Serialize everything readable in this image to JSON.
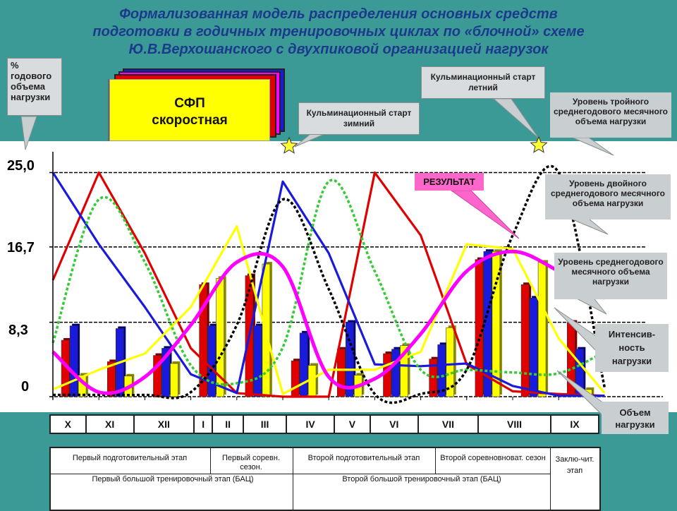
{
  "title": {
    "line1": "Формализованная модель распределения основных средств",
    "line2": "подготовки в годичных тренировочных циклах по «блочной» схеме",
    "line3": "Ю.В.Верхошанского с двухпиковой организацией нагрузок"
  },
  "y_axis_title": "% годового объема нагрузки",
  "y_ticks": [
    "25,0",
    "16,7",
    "8,3",
    "0"
  ],
  "sfp_box": {
    "line1": "СФП",
    "line2": "скоростная"
  },
  "callouts": {
    "winter_start": "Кульминационный старт зимний",
    "summer_start": "Кульминационный старт летний",
    "triple_level": "Уровень тройного среднегодового месячного объема нагрузки",
    "double_level": "Уровень двойного среднегодового месячного объема нагрузки",
    "avg_level": "Уровень среднегодового месячного объема нагрузки",
    "intensity": "Интенсив-ность нагрузки",
    "volume": "Объем нагрузки",
    "result": "РЕЗУЛЬТАТ"
  },
  "months": [
    "X",
    "XI",
    "XII",
    "I",
    "II",
    "III",
    "IV",
    "V",
    "VI",
    "VII",
    "VIII",
    "IX"
  ],
  "stages": {
    "prep1": "Первый подготовительный этап",
    "comp1": "Первый соревн. сезон.",
    "prep2": "Второй подготовительный этап",
    "comp2": "Второй соревновноват. сезон",
    "final": "Заклю-чит. этап",
    "bac1": "Первый большой тренировочный этап (БАЦ)",
    "bac2": "Второй большой тренировочный этап (БАЦ)"
  },
  "colors": {
    "background": "#3c9a96",
    "red": "#e00000",
    "blue": "#1a1adc",
    "yellow": "#ffff00",
    "green": "#33cc33",
    "magenta": "#ff00ff",
    "black": "#000000"
  },
  "chart_data": {
    "type": "bar",
    "categories": [
      "X",
      "XI",
      "XII",
      "I",
      "II",
      "III",
      "IV",
      "V",
      "VI",
      "VII",
      "VIII",
      "IX"
    ],
    "ylim": [
      0,
      27
    ],
    "y_ticks": [
      0,
      8.3,
      16.7,
      25.0
    ],
    "series": [
      {
        "color": "red",
        "values": [
          6.3,
          3.9,
          4.6,
          12.5,
          13.5,
          4.0,
          5.3,
          4.8,
          4.2,
          15.3,
          12.5,
          8.3
        ]
      },
      {
        "color": "blue",
        "values": [
          7.9,
          7.6,
          5.4,
          7.9,
          7.9,
          7.1,
          8.3,
          5.3,
          5.8,
          16.2,
          11.0,
          5.3
        ]
      },
      {
        "color": "yellow",
        "values": [
          2.4,
          2.3,
          3.7,
          13.2,
          14.8,
          3.5,
          2.4,
          5.7,
          7.7,
          16.2,
          15.0,
          0.8
        ]
      }
    ],
    "lines": [
      {
        "color": "red",
        "style": "solid",
        "x": [
          -0.5,
          0.5,
          1.5,
          2.5,
          3.5,
          4.5,
          5.5,
          6.5,
          7.5,
          8.5,
          9.5,
          10.5,
          11.5
        ],
        "y": [
          13.0,
          25.0,
          16.0,
          5.4,
          0.4,
          0.0,
          0.0,
          25.0,
          18.0,
          3.6,
          0.6,
          0.3,
          0.1
        ]
      },
      {
        "color": "blue",
        "style": "solid",
        "x": [
          -0.5,
          0.5,
          1.5,
          2.5,
          3.5,
          4.5,
          5.5,
          6.5,
          7.5,
          8.5,
          9.5,
          10.5,
          11.5
        ],
        "y": [
          25.0,
          17.0,
          10.0,
          2.5,
          0.4,
          24.0,
          16.0,
          3.6,
          3.4,
          3.7,
          1.2,
          0.1,
          0.1
        ]
      },
      {
        "color": "yellow",
        "style": "solid",
        "x": [
          -0.5,
          0.5,
          1.5,
          2.5,
          3.5,
          4.5,
          5.5,
          6.5,
          7.5,
          8.5,
          9.5,
          10.5,
          11.5
        ],
        "y": [
          0.8,
          3.0,
          4.8,
          10.0,
          19.0,
          0.3,
          3.0,
          3.0,
          5.0,
          17.0,
          16.5,
          6.5,
          0.4
        ]
      },
      {
        "color": "green",
        "style": "dotted",
        "x": [
          -0.5,
          0.5,
          1.5,
          2.5,
          3.5,
          4.5,
          5.5,
          6.5,
          7.5,
          8.5,
          9.5,
          10.5,
          11.5
        ],
        "y": [
          6.0,
          22.0,
          15.0,
          3.5,
          1.5,
          5.5,
          24.0,
          14.0,
          3.0,
          3.0,
          2.7,
          2.6,
          5.0
        ]
      },
      {
        "color": "black",
        "style": "dotted",
        "x": [
          -0.5,
          0.5,
          1.5,
          2.5,
          3.5,
          4.5,
          5.5,
          6.5,
          7.5,
          8.5,
          9.5,
          10.5,
          11.5
        ],
        "y": [
          0.2,
          0.2,
          0.2,
          0.5,
          8.0,
          22.0,
          12.0,
          0.3,
          0.3,
          3.0,
          18.0,
          25.0,
          1.0
        ]
      },
      {
        "color": "magenta",
        "style": "solid",
        "x": [
          -0.5,
          0.5,
          1.5,
          2.5,
          3.5,
          4.5,
          5.5,
          6.5,
          7.5,
          8.5,
          9.5,
          10.5,
          11.5
        ],
        "y": [
          5.0,
          0.5,
          2.2,
          8.0,
          15.0,
          14.5,
          2.2,
          2.0,
          7.0,
          14.0,
          16.2,
          14.0,
          11.0
        ]
      }
    ],
    "reference_lines": [
      8.3,
      16.7,
      25.0
    ]
  }
}
